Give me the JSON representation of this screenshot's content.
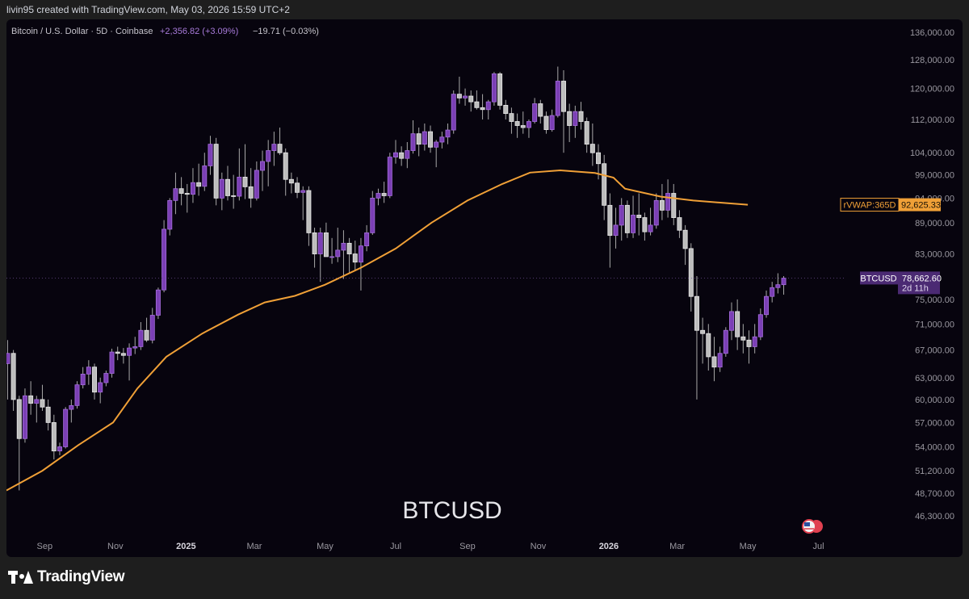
{
  "header": {
    "created_by": "livin95 created with TradingView.com, May 03, 2026 15:59 UTC+2"
  },
  "legend": {
    "symbol": "Bitcoin / U.S. Dollar · 5D · Coinbase",
    "change_abs": "+2,356.82 (+3.09%)",
    "change2": "−19.71 (−0.03%)"
  },
  "watermark": "BTCUSD",
  "brand": "TradingView",
  "colors": {
    "bg": "#07040e",
    "up": "#7b3fb5",
    "up_border": "#a46ddb",
    "down": "#bdbdbd",
    "down_border": "#e8e8e8",
    "wick": "#a8a8a8",
    "vwap": "#f0a037",
    "axis_text": "#9a98a0",
    "price_tag": "#4b2a73"
  },
  "chart_data": {
    "type": "candlestick",
    "timeframe": "5D",
    "y_scale": "log",
    "ylim": [
      44500,
      140000
    ],
    "y_ticks": [
      136000,
      128000,
      120000,
      112000,
      104000,
      99000,
      94000,
      89000,
      83000,
      75000,
      71000,
      67000,
      63000,
      60000,
      57000,
      54000,
      51200,
      48700,
      46300
    ],
    "y_tick_labels": [
      "136,000.00",
      "128,000.00",
      "120,000.00",
      "112,000.00",
      "104,000.00",
      "99,000.00",
      "94,000.00",
      "89,000.00",
      "83,000.00",
      "75,000.00",
      "71,000.00",
      "67,000.00",
      "63,000.00",
      "60,000.00",
      "57,000.00",
      "54,000.00",
      "51,200.00",
      "48,700.00",
      "46,300.00"
    ],
    "x_start": "2024-07-30",
    "x_end": "2026-07-25",
    "x_ticks": [
      {
        "date": "2024-09-01",
        "label": "Sep",
        "bold": false
      },
      {
        "date": "2024-11-01",
        "label": "Nov",
        "bold": false
      },
      {
        "date": "2025-01-01",
        "label": "2025",
        "bold": true
      },
      {
        "date": "2025-03-01",
        "label": "Mar",
        "bold": false
      },
      {
        "date": "2025-05-01",
        "label": "May",
        "bold": false
      },
      {
        "date": "2025-07-01",
        "label": "Jul",
        "bold": false
      },
      {
        "date": "2025-09-01",
        "label": "Sep",
        "bold": false
      },
      {
        "date": "2025-11-01",
        "label": "Nov",
        "bold": false
      },
      {
        "date": "2026-01-01",
        "label": "2026",
        "bold": true
      },
      {
        "date": "2026-03-01",
        "label": "Mar",
        "bold": false
      },
      {
        "date": "2026-05-01",
        "label": "May",
        "bold": false
      },
      {
        "date": "2026-07-01",
        "label": "Jul",
        "bold": false
      }
    ],
    "candles_start": "2024-07-31",
    "candle_days": 5,
    "candles": [
      [
        65000,
        68500,
        60000,
        66500
      ],
      [
        66500,
        67000,
        58500,
        60000
      ],
      [
        60000,
        60500,
        49000,
        55000
      ],
      [
        55000,
        61500,
        54500,
        60500
      ],
      [
        60500,
        62500,
        58000,
        59500
      ],
      [
        59500,
        60500,
        57000,
        60000
      ],
      [
        60000,
        62000,
        58500,
        59000
      ],
      [
        59000,
        60000,
        56000,
        57000
      ],
      [
        57000,
        58000,
        52500,
        53500
      ],
      [
        53500,
        54500,
        53000,
        54000
      ],
      [
        54000,
        59000,
        53800,
        58700
      ],
      [
        58700,
        60000,
        57000,
        59200
      ],
      [
        59200,
        62500,
        58800,
        62000
      ],
      [
        62000,
        64500,
        61500,
        63500
      ],
      [
        63500,
        65500,
        62000,
        64500
      ],
      [
        64500,
        65000,
        60000,
        61000
      ],
      [
        61000,
        63000,
        59500,
        62300
      ],
      [
        62300,
        64000,
        61800,
        63600
      ],
      [
        63600,
        67200,
        63000,
        66700
      ],
      [
        66700,
        67500,
        65500,
        66500
      ],
      [
        66500,
        67300,
        65000,
        66200
      ],
      [
        66200,
        68000,
        62600,
        67300
      ],
      [
        67300,
        69000,
        66400,
        67500
      ],
      [
        67500,
        71300,
        67000,
        70000
      ],
      [
        70000,
        72000,
        68200,
        68500
      ],
      [
        68500,
        73600,
        68000,
        72400
      ],
      [
        72400,
        77000,
        71800,
        76600
      ],
      [
        76600,
        89500,
        76200,
        87700
      ],
      [
        87700,
        94000,
        86500,
        93500
      ],
      [
        93500,
        99500,
        90700,
        96000
      ],
      [
        96000,
        98500,
        92500,
        95000
      ],
      [
        95000,
        97000,
        91000,
        94800
      ],
      [
        94800,
        100500,
        93000,
        97300
      ],
      [
        97300,
        101500,
        94500,
        96500
      ],
      [
        96500,
        104000,
        95500,
        101000
      ],
      [
        101000,
        108000,
        99000,
        106000
      ],
      [
        106000,
        107500,
        92500,
        94000
      ],
      [
        94000,
        99500,
        91500,
        98000
      ],
      [
        98000,
        101000,
        93500,
        94500
      ],
      [
        94500,
        99000,
        91800,
        94400
      ],
      [
        94400,
        105000,
        93500,
        98500
      ],
      [
        98500,
        106000,
        93800,
        96400
      ],
      [
        96400,
        100500,
        92000,
        94000
      ],
      [
        94000,
        102000,
        93500,
        100000
      ],
      [
        100000,
        104500,
        95500,
        102000
      ],
      [
        102000,
        107000,
        96500,
        104500
      ],
      [
        104500,
        109000,
        101000,
        106000
      ],
      [
        106000,
        110000,
        103500,
        104000
      ],
      [
        104000,
        105000,
        94500,
        98000
      ],
      [
        98000,
        99500,
        95000,
        97200
      ],
      [
        97200,
        98500,
        94000,
        95200
      ],
      [
        95200,
        96500,
        89500,
        95600
      ],
      [
        95600,
        96500,
        84500,
        87000
      ],
      [
        87000,
        88000,
        80500,
        83000
      ],
      [
        83000,
        88000,
        78000,
        87000
      ],
      [
        87000,
        89000,
        82500,
        82500
      ],
      [
        82500,
        86000,
        81200,
        82500
      ],
      [
        82500,
        88000,
        81500,
        83700
      ],
      [
        83700,
        87500,
        78500,
        85000
      ],
      [
        85000,
        86000,
        79500,
        83000
      ],
      [
        83000,
        85500,
        80000,
        81500
      ],
      [
        81500,
        86000,
        76500,
        84500
      ],
      [
        84500,
        88500,
        83500,
        87000
      ],
      [
        87000,
        95500,
        86600,
        94000
      ],
      [
        94000,
        96000,
        92500,
        95000
      ],
      [
        95000,
        97500,
        93000,
        94500
      ],
      [
        94500,
        104000,
        94000,
        103000
      ],
      [
        103000,
        107000,
        101500,
        104000
      ],
      [
        104000,
        105500,
        101000,
        102700
      ],
      [
        102700,
        106500,
        100500,
        104500
      ],
      [
        104500,
        111800,
        103800,
        108500
      ],
      [
        108500,
        110000,
        103200,
        106000
      ],
      [
        106000,
        111000,
        104500,
        109000
      ],
      [
        109000,
        110500,
        104000,
        105300
      ],
      [
        105300,
        107000,
        100700,
        106500
      ],
      [
        106500,
        109000,
        105000,
        107700
      ],
      [
        107700,
        111000,
        106000,
        109400
      ],
      [
        109400,
        119500,
        108500,
        118500
      ],
      [
        118500,
        123200,
        116000,
        117500
      ],
      [
        117500,
        120000,
        115500,
        118000
      ],
      [
        118000,
        119500,
        114000,
        116500
      ],
      [
        116500,
        119500,
        114500,
        115000
      ],
      [
        115000,
        118500,
        112000,
        114500
      ],
      [
        114500,
        117000,
        112000,
        116500
      ],
      [
        116500,
        124500,
        115500,
        124000
      ],
      [
        124000,
        124500,
        114500,
        115600
      ],
      [
        115600,
        117000,
        112000,
        113500
      ],
      [
        113500,
        115000,
        108500,
        111500
      ],
      [
        111500,
        113500,
        107500,
        110500
      ],
      [
        110500,
        114000,
        108500,
        110000
      ],
      [
        110000,
        112000,
        107500,
        111500
      ],
      [
        111500,
        117500,
        111000,
        116000
      ],
      [
        116000,
        117000,
        111000,
        112800
      ],
      [
        112800,
        114000,
        108500,
        109500
      ],
      [
        109500,
        114500,
        109000,
        113000
      ],
      [
        113000,
        126000,
        112500,
        122000
      ],
      [
        122000,
        125000,
        104000,
        114000
      ],
      [
        114000,
        116000,
        106500,
        110500
      ],
      [
        110500,
        115500,
        107500,
        114000
      ],
      [
        114000,
        116500,
        109500,
        111500
      ],
      [
        111500,
        112500,
        104000,
        106000
      ],
      [
        106000,
        111000,
        101000,
        104000
      ],
      [
        104000,
        106000,
        98000,
        101500
      ],
      [
        101500,
        103500,
        89500,
        92500
      ],
      [
        92500,
        95000,
        80500,
        86500
      ],
      [
        86500,
        92000,
        84000,
        88500
      ],
      [
        88500,
        94000,
        85500,
        92500
      ],
      [
        92500,
        93500,
        86000,
        87000
      ],
      [
        87000,
        94500,
        86000,
        90500
      ],
      [
        90500,
        95000,
        86500,
        90000
      ],
      [
        90000,
        91000,
        85500,
        87200
      ],
      [
        87200,
        92000,
        86500,
        88500
      ],
      [
        88500,
        95000,
        87800,
        93500
      ],
      [
        93500,
        97000,
        89500,
        91500
      ],
      [
        91500,
        98000,
        90000,
        95000
      ],
      [
        95000,
        97000,
        88500,
        90000
      ],
      [
        90000,
        91500,
        86000,
        87500
      ],
      [
        87500,
        88500,
        81000,
        84000
      ],
      [
        84000,
        85000,
        73000,
        75500
      ],
      [
        75500,
        79000,
        60000,
        70000
      ],
      [
        70000,
        72000,
        65000,
        69500
      ],
      [
        69500,
        71000,
        64000,
        66000
      ],
      [
        66000,
        69000,
        62500,
        64500
      ],
      [
        64500,
        67500,
        63800,
        66500
      ],
      [
        66500,
        70500,
        66000,
        70000
      ],
      [
        70000,
        74500,
        68500,
        73000
      ],
      [
        73000,
        75000,
        67000,
        69000
      ],
      [
        69000,
        71000,
        66500,
        68500
      ],
      [
        68500,
        70000,
        65000,
        67500
      ],
      [
        67500,
        71000,
        66500,
        69000
      ],
      [
        69000,
        73500,
        68500,
        72500
      ],
      [
        72500,
        76500,
        72000,
        75500
      ],
      [
        75500,
        78000,
        74500,
        77000
      ],
      [
        77000,
        79500,
        76000,
        77500
      ],
      [
        77500,
        79000,
        75800,
        78663
      ]
    ],
    "vwap": {
      "name": "rVWAP:365D",
      "last": 92625.33,
      "points": [
        [
          "2024-07-30",
          49000
        ],
        [
          "2024-08-30",
          51200
        ],
        [
          "2024-09-30",
          54200
        ],
        [
          "2024-10-30",
          57000
        ],
        [
          "2024-11-20",
          61500
        ],
        [
          "2024-12-15",
          66000
        ],
        [
          "2025-01-15",
          69500
        ],
        [
          "2025-02-15",
          72500
        ],
        [
          "2025-03-10",
          74500
        ],
        [
          "2025-04-05",
          75600
        ],
        [
          "2025-05-01",
          77500
        ],
        [
          "2025-06-01",
          80500
        ],
        [
          "2025-07-01",
          84000
        ],
        [
          "2025-08-01",
          89000
        ],
        [
          "2025-09-01",
          93500
        ],
        [
          "2025-10-01",
          97000
        ],
        [
          "2025-10-25",
          99500
        ],
        [
          "2025-11-20",
          100000
        ],
        [
          "2025-12-20",
          99400
        ],
        [
          "2026-01-05",
          98400
        ],
        [
          "2026-01-15",
          96000
        ],
        [
          "2026-02-15",
          94300
        ],
        [
          "2026-03-15",
          93500
        ],
        [
          "2026-04-15",
          92900
        ],
        [
          "2026-05-01",
          92625
        ]
      ]
    },
    "price_tags": [
      {
        "name": "BTCUSD",
        "value": "78,662.60",
        "sub": "2d 11h",
        "price": 78662.6
      },
      {
        "name": "rVWAP:365D",
        "value": "92,625.33",
        "price": 92625.33
      }
    ]
  }
}
